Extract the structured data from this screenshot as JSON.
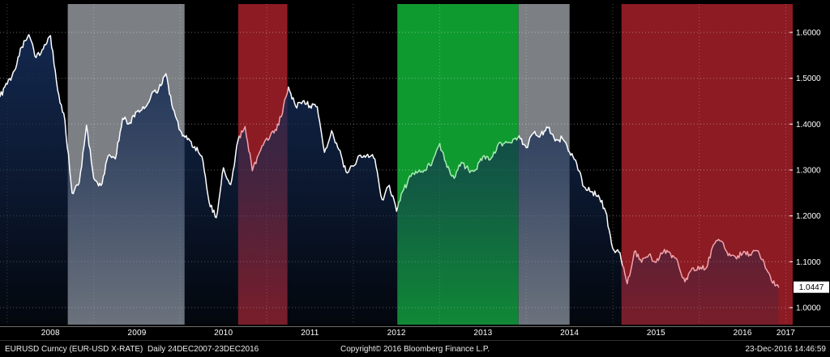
{
  "colors": {
    "background": "#000000",
    "line": "#ffffff",
    "area_top": "#142a52",
    "grid": "#ffffff",
    "axis_text": "#ffffff",
    "last_price_bg": "#ffffff",
    "last_price_text": "#000000",
    "gray_band": "#7c8085",
    "red_band": "#8c1b23",
    "green_band": "#0f9a30"
  },
  "footer": {
    "left": "EURUSD Curncy (EUR-USD X-RATE)  Daily 24DEC2007-23DEC2016",
    "center": "Copyright© 2016 Bloomberg Finance L.P.",
    "right": "23-Dec-2016 14:46:59"
  },
  "chart_data": {
    "type": "line",
    "title": "EURUSD Curncy (EUR-USD X-RATE) Daily 24DEC2007-23DEC2016",
    "instrument": "EURUSD",
    "x_unit": "decimal_year",
    "x_range": [
      2007.917,
      2017.08
    ],
    "y_display": [
      0.9594,
      1.6706
    ],
    "y_ticks": [
      1.0,
      1.1,
      1.2,
      1.3,
      1.4,
      1.5,
      1.6
    ],
    "y_tick_labels": [
      "1.0000",
      "1.1000",
      "1.2000",
      "1.3000",
      "1.4000",
      "1.5000",
      "1.6000"
    ],
    "x_tick_years": [
      2008,
      2009,
      2010,
      2011,
      2012,
      2013,
      2014,
      2015,
      2016,
      2017
    ],
    "grid": {
      "horizontal": true,
      "vertical": true,
      "style": "dotted"
    },
    "legend": "none",
    "last_price": 1.0447,
    "last_price_label": "1.0447",
    "bands": [
      {
        "label": "shaded-period-1",
        "from": 2008.7,
        "to": 2010.05,
        "color": "#7c8085",
        "line_color": "#ffffff"
      },
      {
        "label": "shaded-period-2",
        "from": 2010.67,
        "to": 2011.24,
        "color": "#8c1b23",
        "line_color": "#f2a3aa"
      },
      {
        "label": "shaded-period-3",
        "from": 2012.51,
        "to": 2013.91,
        "color": "#0f9a30",
        "line_color": "#a5ecae"
      },
      {
        "label": "shaded-period-4",
        "from": 2013.91,
        "to": 2014.5,
        "color": "#7c8085",
        "line_color": "#ffffff"
      },
      {
        "label": "shaded-period-5",
        "from": 2015.1,
        "to": 2017.08,
        "color": "#8c1b23",
        "line_color": "#f2a3aa"
      }
    ],
    "series": [
      {
        "name": "EURUSD X-RATE",
        "x_note": "monthly points starting Dec-2007; x = x_start + i * x_step (decimal years)",
        "x_start": 2007.917,
        "x_step": 0.0833333,
        "values": [
          1.4603,
          1.487,
          1.5167,
          1.568,
          1.595,
          1.545,
          1.564,
          1.593,
          1.4735,
          1.4081,
          1.25,
          1.2727,
          1.3978,
          1.2822,
          1.2662,
          1.3308,
          1.3244,
          1.4126,
          1.4033,
          1.4272,
          1.4338,
          1.4643,
          1.4755,
          1.51,
          1.4326,
          1.3862,
          1.3662,
          1.351,
          1.3302,
          1.2306,
          1.196,
          1.3049,
          1.268,
          1.3634,
          1.3947,
          1.2984,
          1.3384,
          1.3692,
          1.3806,
          1.4158,
          1.4807,
          1.4393,
          1.4502,
          1.4397,
          1.4378,
          1.3387,
          1.3857,
          1.3446,
          1.2961,
          1.3081,
          1.3325,
          1.3343,
          1.324,
          1.2358,
          1.2667,
          1.21,
          1.2576,
          1.286,
          1.296,
          1.2986,
          1.3193,
          1.358,
          1.3057,
          1.2819,
          1.3168,
          1.2999,
          1.301,
          1.33,
          1.3222,
          1.3527,
          1.3586,
          1.3591,
          1.3743,
          1.3486,
          1.3802,
          1.3771,
          1.392,
          1.3634,
          1.3692,
          1.339,
          1.3133,
          1.2631,
          1.2524,
          1.2452,
          1.21,
          1.1289,
          1.1197,
          1.052,
          1.1224,
          1.0986,
          1.1147,
          1.0984,
          1.1211,
          1.1177,
          1.1006,
          1.0563,
          1.0862,
          1.0832,
          1.0873,
          1.138,
          1.1451,
          1.1132,
          1.1106,
          1.1176,
          1.1159,
          1.1238,
          1.0981,
          1.0588,
          1.0447
        ]
      }
    ]
  }
}
